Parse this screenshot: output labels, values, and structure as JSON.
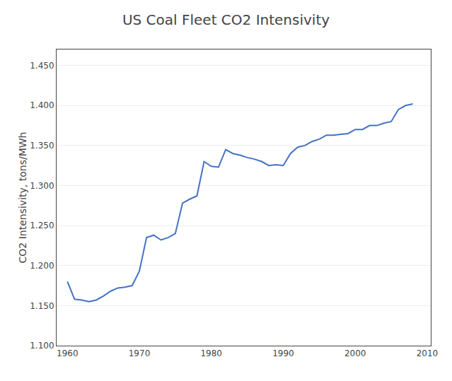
{
  "chart_data": {
    "type": "line",
    "title": "US Coal Fleet CO2 Intensivity",
    "ylabel": "CO2 Intensivity, tons/MWh",
    "x": [
      1960,
      1961,
      1962,
      1963,
      1964,
      1965,
      1966,
      1967,
      1968,
      1969,
      1970,
      1971,
      1972,
      1973,
      1974,
      1975,
      1976,
      1977,
      1978,
      1979,
      1980,
      1981,
      1982,
      1983,
      1984,
      1985,
      1986,
      1987,
      1988,
      1989,
      1990,
      1991,
      1992,
      1993,
      1994,
      1995,
      1996,
      1997,
      1998,
      1999,
      2000,
      2001,
      2002,
      2003,
      2004,
      2005,
      2006,
      2007,
      2008
    ],
    "values": [
      1.18,
      1.158,
      1.157,
      1.155,
      1.157,
      1.162,
      1.168,
      1.172,
      1.173,
      1.175,
      1.193,
      1.235,
      1.238,
      1.232,
      1.235,
      1.24,
      1.278,
      1.283,
      1.287,
      1.33,
      1.324,
      1.323,
      1.345,
      1.34,
      1.338,
      1.335,
      1.333,
      1.33,
      1.325,
      1.326,
      1.325,
      1.34,
      1.348,
      1.35,
      1.355,
      1.358,
      1.363,
      1.363,
      1.364,
      1.365,
      1.37,
      1.37,
      1.375,
      1.375,
      1.378,
      1.38,
      1.395,
      1.4,
      1.402
    ],
    "color": "#4472c4",
    "xlim": [
      1958.5,
      2010.5
    ],
    "ylim": [
      1.1,
      1.47
    ],
    "xticks": [
      1960,
      1970,
      1980,
      1990,
      2000,
      2010
    ],
    "yticks": [
      {
        "value": 1.1,
        "label": "1.100"
      },
      {
        "value": 1.15,
        "label": "1.150"
      },
      {
        "value": 1.2,
        "label": "1.200"
      },
      {
        "value": 1.25,
        "label": "1.250"
      },
      {
        "value": 1.3,
        "label": "1.300"
      },
      {
        "value": 1.35,
        "label": "1.350"
      },
      {
        "value": 1.4,
        "label": "1.400"
      },
      {
        "value": 1.45,
        "label": "1.450"
      }
    ],
    "grid": true
  }
}
